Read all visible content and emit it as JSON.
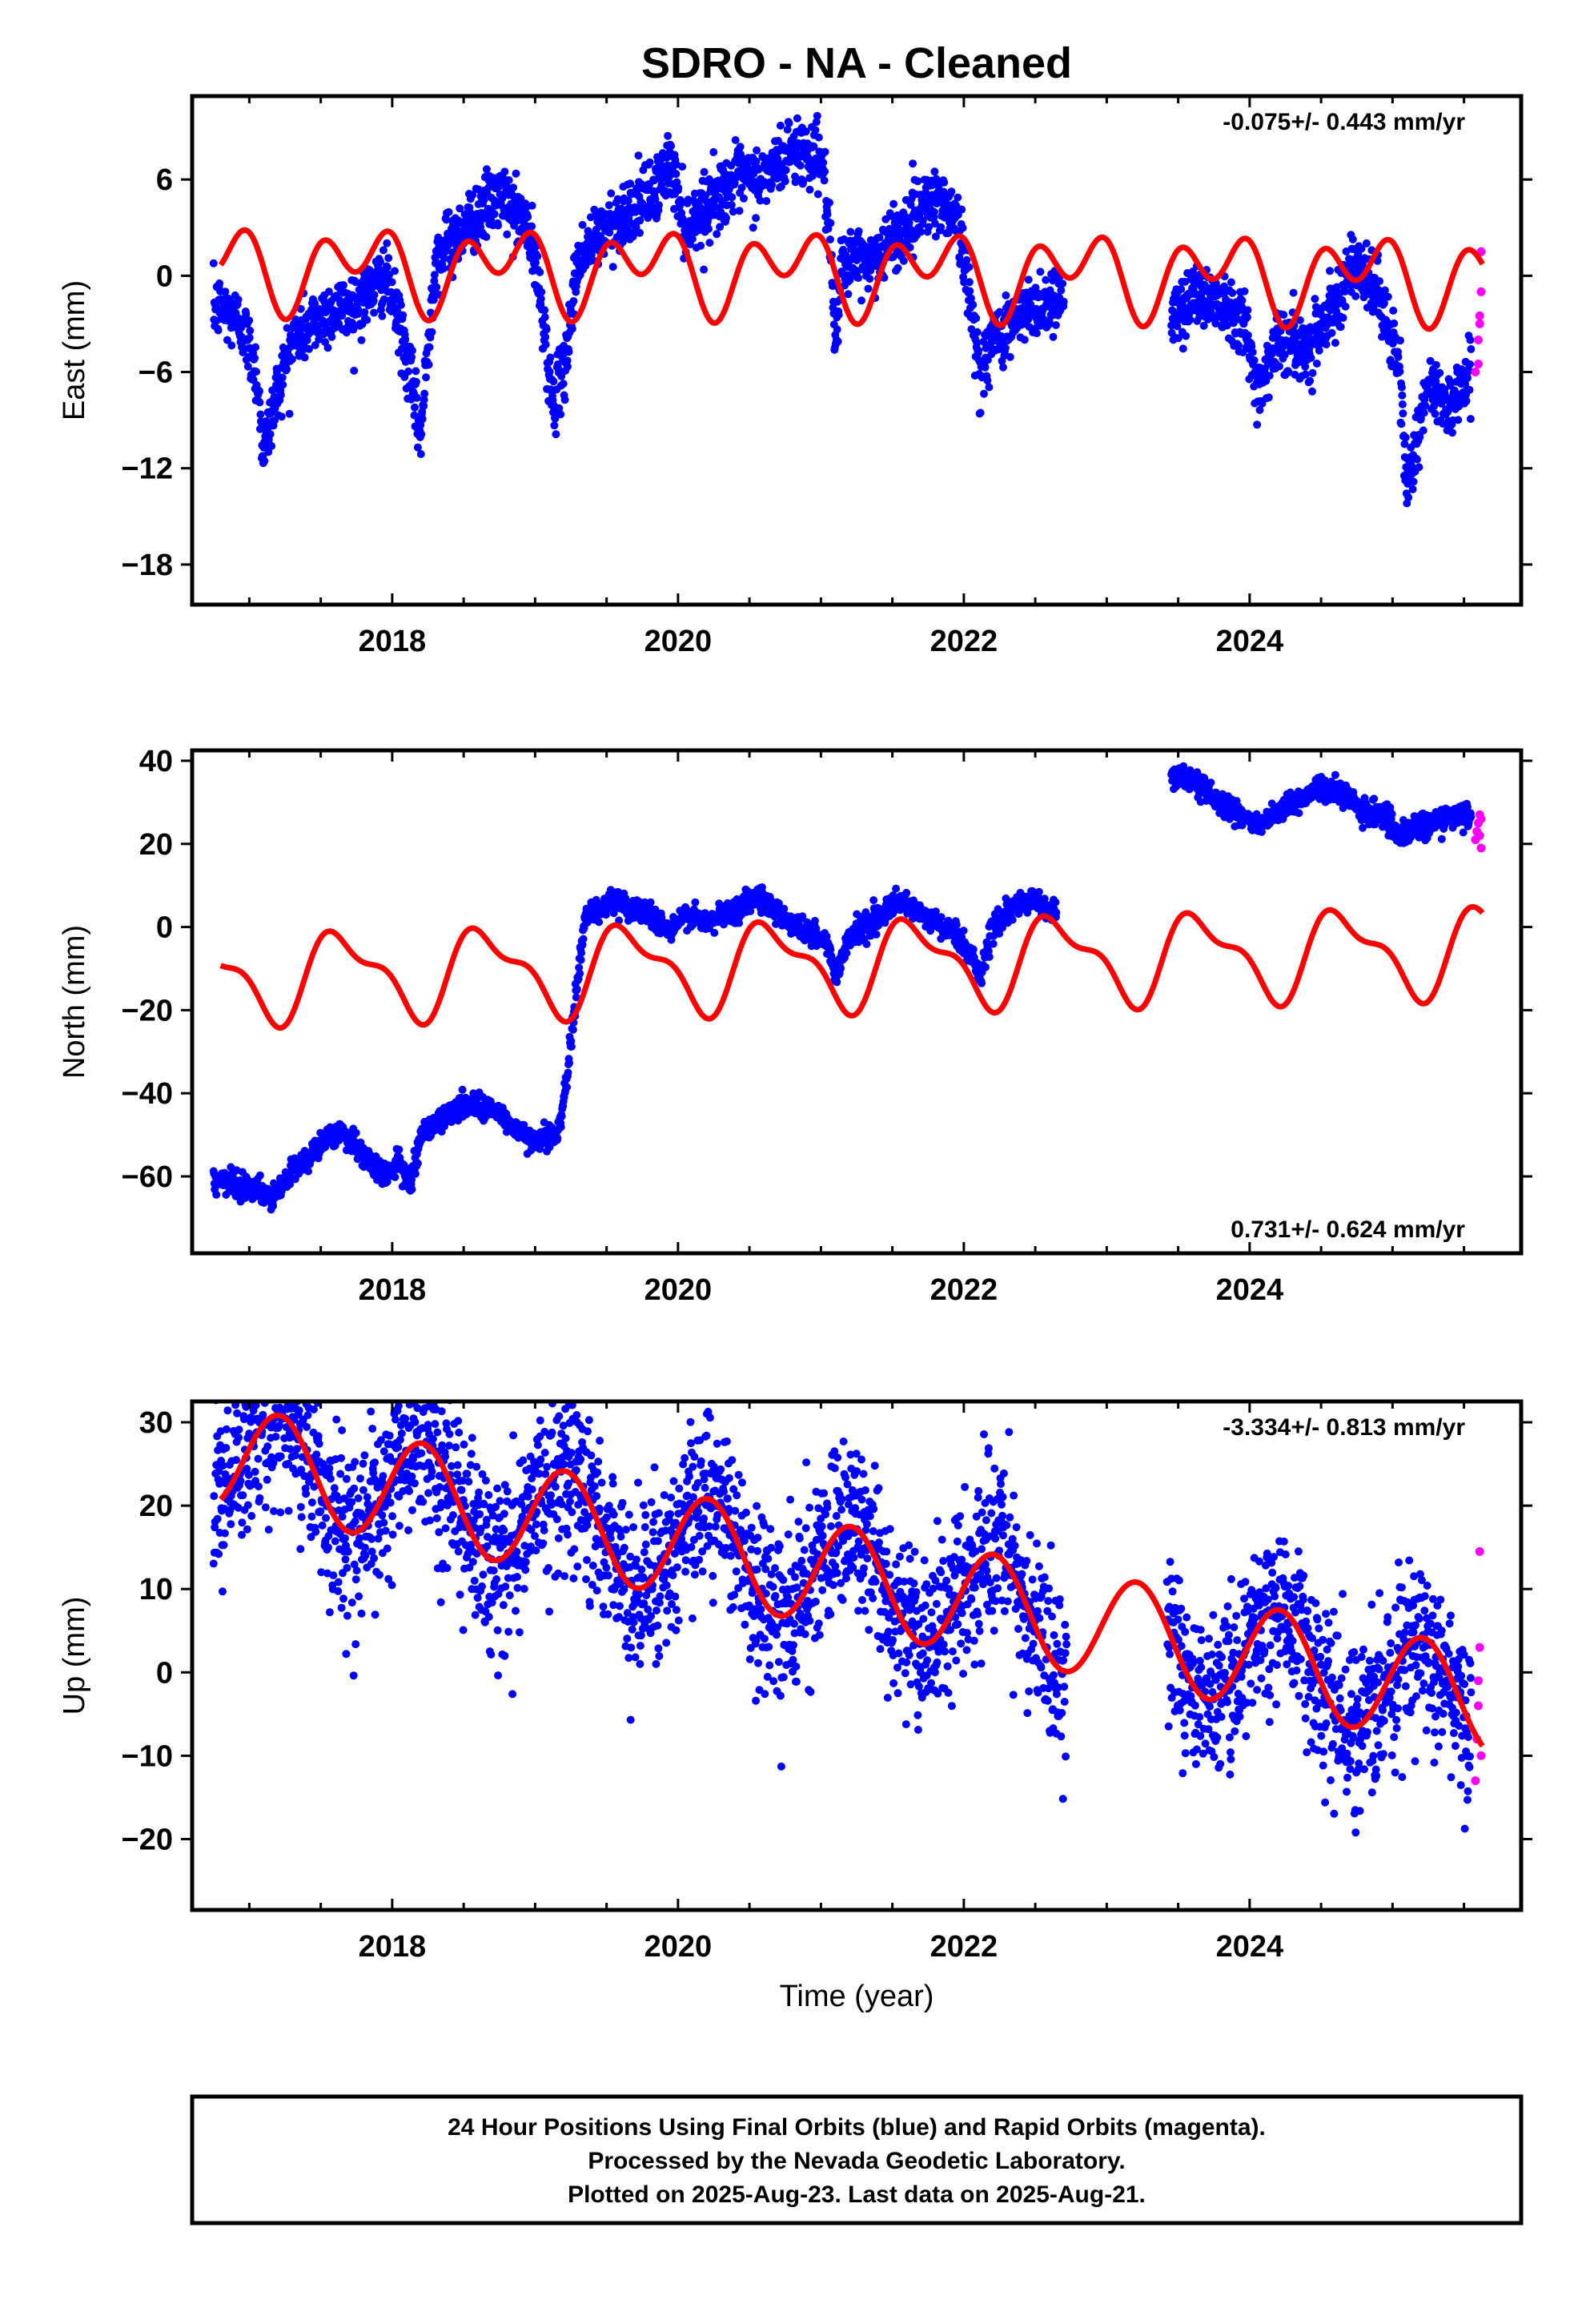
{
  "chart_data": {
    "title": "SDRO  - NA - Cleaned",
    "type": "scatter",
    "colors": {
      "final": "#0000ff",
      "rapid": "#ff00ff",
      "model": "#ff0000"
    },
    "panels": [
      {
        "id": "east",
        "ylabel": "East (mm)",
        "xlim": [
          2016.6,
          2025.9
        ],
        "ylim": [
          -20.5,
          11.2
        ],
        "yticks": [
          -18,
          -12,
          -6,
          0,
          6
        ],
        "ytick_labels": [
          "−18",
          "−12",
          "−6",
          "0",
          "6"
        ],
        "xticks": [
          2018,
          2020,
          2022,
          2024
        ],
        "xtick_labels": [
          "2018",
          "2020",
          "2022",
          "2024"
        ],
        "rate_text": "-0.075+/- 0.443 mm/yr",
        "rate_position": "top-right",
        "final_series_anchors": [
          [
            2016.8,
            -2
          ],
          [
            2016.95,
            -3
          ],
          [
            2017.05,
            -6
          ],
          [
            2017.1,
            -11
          ],
          [
            2017.2,
            -7
          ],
          [
            2017.3,
            -4
          ],
          [
            2017.5,
            -2.5
          ],
          [
            2017.8,
            -1.5
          ],
          [
            2017.95,
            0
          ],
          [
            2018.05,
            -3
          ],
          [
            2018.12,
            -6
          ],
          [
            2018.2,
            -10
          ],
          [
            2018.3,
            1
          ],
          [
            2018.5,
            3
          ],
          [
            2018.75,
            5
          ],
          [
            2018.95,
            3
          ],
          [
            2019.05,
            -2
          ],
          [
            2019.12,
            -8
          ],
          [
            2019.2,
            -6
          ],
          [
            2019.3,
            1
          ],
          [
            2019.5,
            3
          ],
          [
            2019.8,
            5
          ],
          [
            2019.95,
            7
          ],
          [
            2020.05,
            3
          ],
          [
            2020.15,
            4
          ],
          [
            2020.4,
            6
          ],
          [
            2020.6,
            6
          ],
          [
            2020.8,
            8
          ],
          [
            2021.0,
            7.5
          ],
          [
            2021.05,
            4
          ],
          [
            2021.1,
            -5
          ],
          [
            2021.15,
            1
          ],
          [
            2021.35,
            1
          ],
          [
            2021.6,
            3
          ],
          [
            2021.75,
            5
          ],
          [
            2021.95,
            4
          ],
          [
            2022.05,
            -2
          ],
          [
            2022.12,
            -6
          ],
          [
            2022.2,
            -4
          ],
          [
            2022.4,
            -2.5
          ],
          [
            2022.6,
            -1.5
          ],
          [
            2022.7,
            -1
          ],
          [
            2023.45,
            -3
          ],
          [
            2023.6,
            -1
          ],
          [
            2023.8,
            -1.5
          ],
          [
            2023.95,
            -2.5
          ],
          [
            2024.05,
            -7
          ],
          [
            2024.2,
            -4
          ],
          [
            2024.4,
            -4.5
          ],
          [
            2024.55,
            -2.5
          ],
          [
            2024.7,
            0.5
          ],
          [
            2024.9,
            -1
          ],
          [
            2025.05,
            -6
          ],
          [
            2025.1,
            -13
          ],
          [
            2025.25,
            -7
          ],
          [
            2025.4,
            -8
          ],
          [
            2025.55,
            -6
          ]
        ],
        "rapid_series": [
          [
            2025.58,
            -6
          ],
          [
            2025.6,
            -5.5
          ],
          [
            2025.6,
            -4
          ],
          [
            2025.61,
            -3
          ],
          [
            2025.61,
            -2.5
          ],
          [
            2025.62,
            -1
          ],
          [
            2025.62,
            1.5
          ]
        ],
        "model_curve": {
          "offset": 0.3,
          "trend": -0.075,
          "annual_sin": -1.5,
          "annual_cos": 0.3,
          "semi_sin": 0.0,
          "semi_cos": 1.8
        }
      },
      {
        "id": "north",
        "ylabel": "North (mm)",
        "xlim": [
          2016.6,
          2025.9
        ],
        "ylim": [
          -78.5,
          42.5
        ],
        "yticks": [
          -60,
          -40,
          -20,
          0,
          20,
          40
        ],
        "ytick_labels": [
          "−60",
          "−40",
          "−20",
          "0",
          "20",
          "40"
        ],
        "xticks": [
          2018,
          2020,
          2022,
          2024
        ],
        "xtick_labels": [
          "2018",
          "2020",
          "2022",
          "2024"
        ],
        "rate_text": "0.731+/- 0.624 mm/yr",
        "rate_position": "bottom-right",
        "final_series_anchors": [
          [
            2016.8,
            -61
          ],
          [
            2016.95,
            -62
          ],
          [
            2017.05,
            -63
          ],
          [
            2017.15,
            -66
          ],
          [
            2017.3,
            -59
          ],
          [
            2017.5,
            -52
          ],
          [
            2017.65,
            -49
          ],
          [
            2017.8,
            -55
          ],
          [
            2017.95,
            -60
          ],
          [
            2018.05,
            -56
          ],
          [
            2018.12,
            -63
          ],
          [
            2018.2,
            -50
          ],
          [
            2018.4,
            -45
          ],
          [
            2018.55,
            -42
          ],
          [
            2018.75,
            -45
          ],
          [
            2018.95,
            -51
          ],
          [
            2019.15,
            -50
          ],
          [
            2019.2,
            -43
          ],
          [
            2019.35,
            3
          ],
          [
            2019.55,
            6
          ],
          [
            2019.75,
            4
          ],
          [
            2019.95,
            -1
          ],
          [
            2020.05,
            3
          ],
          [
            2020.2,
            1
          ],
          [
            2020.4,
            4
          ],
          [
            2020.55,
            8
          ],
          [
            2020.75,
            2
          ],
          [
            2020.95,
            -2
          ],
          [
            2021.05,
            -4
          ],
          [
            2021.1,
            -12
          ],
          [
            2021.2,
            -2
          ],
          [
            2021.4,
            2
          ],
          [
            2021.55,
            6
          ],
          [
            2021.75,
            2
          ],
          [
            2021.95,
            -2
          ],
          [
            2022.05,
            -7
          ],
          [
            2022.12,
            -11
          ],
          [
            2022.2,
            0
          ],
          [
            2022.45,
            7
          ],
          [
            2022.65,
            3
          ],
          [
            2023.45,
            37
          ],
          [
            2023.6,
            35
          ],
          [
            2023.8,
            30
          ],
          [
            2023.95,
            27
          ],
          [
            2024.05,
            24
          ],
          [
            2024.2,
            27
          ],
          [
            2024.45,
            33
          ],
          [
            2024.6,
            33
          ],
          [
            2024.8,
            28
          ],
          [
            2024.95,
            27
          ],
          [
            2025.05,
            21
          ],
          [
            2025.15,
            24
          ],
          [
            2025.35,
            26
          ],
          [
            2025.5,
            27
          ]
        ],
        "rapid_series": [
          [
            2025.58,
            21
          ],
          [
            2025.59,
            23
          ],
          [
            2025.6,
            25
          ],
          [
            2025.61,
            27
          ],
          [
            2025.61,
            22
          ],
          [
            2025.62,
            19
          ],
          [
            2025.62,
            26
          ]
        ],
        "model_curve": {
          "offset": -9,
          "trend": 0.731,
          "annual_sin": -8,
          "annual_cos": -5,
          "semi_sin": 0.0,
          "semi_cos": 4
        }
      },
      {
        "id": "up",
        "ylabel": "Up (mm)",
        "xlim": [
          2016.6,
          2025.9
        ],
        "ylim": [
          -28.5,
          32.5
        ],
        "yticks": [
          -20,
          -10,
          0,
          10,
          20,
          30
        ],
        "ytick_labels": [
          "−20",
          "−10",
          "0",
          "10",
          "20",
          "30"
        ],
        "xticks": [
          2018,
          2020,
          2022,
          2024
        ],
        "xtick_labels": [
          "2018",
          "2020",
          "2022",
          "2024"
        ],
        "xlabel": "Time (year)",
        "rate_text": "-3.334+/- 0.813 mm/yr",
        "rate_position": "top-right",
        "final_series_center": {
          "trend": -3.334,
          "offset": 12.0,
          "annual_amp": 6.0,
          "noise": 5.0
        },
        "final_series_gaps": [
          [
            2022.72,
            2023.42
          ]
        ],
        "rapid_series": [
          [
            2025.58,
            -13
          ],
          [
            2025.59,
            -8
          ],
          [
            2025.6,
            -4
          ],
          [
            2025.6,
            -1
          ],
          [
            2025.61,
            3
          ],
          [
            2025.61,
            14.5
          ],
          [
            2025.62,
            -10
          ]
        ],
        "model_curve": {
          "offset": 12.0,
          "trend": -3.334,
          "annual_sin": 6.0,
          "annual_cos": 1.5,
          "semi_sin": 0.0,
          "semi_cos": 0.0
        }
      }
    ],
    "footer": {
      "line1": "24 Hour Positions Using Final Orbits (blue) and Rapid Orbits (magenta).",
      "line2": "Processed by the Nevada Geodetic Laboratory.",
      "line3": "Plotted on 2025-Aug-23. Last data on 2025-Aug-21."
    }
  }
}
